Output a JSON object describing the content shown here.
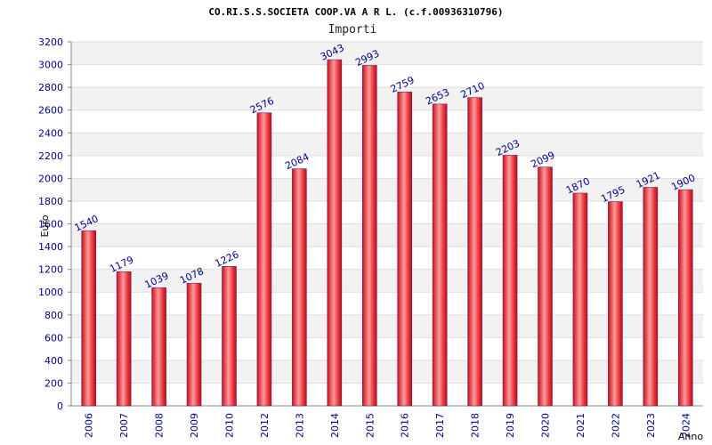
{
  "chart_data": {
    "type": "bar",
    "title": "CO.RI.S.S.SOCIETA COOP.VA A R L. (c.f.00936310796)",
    "subtitle": "Importi",
    "xlabel": "Anno",
    "ylabel": "Euro",
    "categories": [
      "2006",
      "2007",
      "2008",
      "2009",
      "2010",
      "2012",
      "2013",
      "2014",
      "2015",
      "2016",
      "2017",
      "2018",
      "2019",
      "2020",
      "2021",
      "2022",
      "2023",
      "2024"
    ],
    "values": [
      1540,
      1179,
      1039,
      1078,
      1226,
      2576,
      2084,
      3043,
      2993,
      2759,
      2653,
      2710,
      2203,
      2099,
      1870,
      1795,
      1921,
      1900
    ],
    "ylim": [
      0,
      3200
    ],
    "yticks": [
      0,
      200,
      400,
      600,
      800,
      1000,
      1200,
      1400,
      1600,
      1800,
      2000,
      2200,
      2400,
      2600,
      2800,
      3000,
      3200
    ],
    "grid": true,
    "legend": "none",
    "colors": {
      "bar_edge": "#cc0000",
      "bar_mid": "#ff9999",
      "bar_dark": "#e0141e",
      "label": "#00008b",
      "band": "#f2f2f2"
    }
  }
}
